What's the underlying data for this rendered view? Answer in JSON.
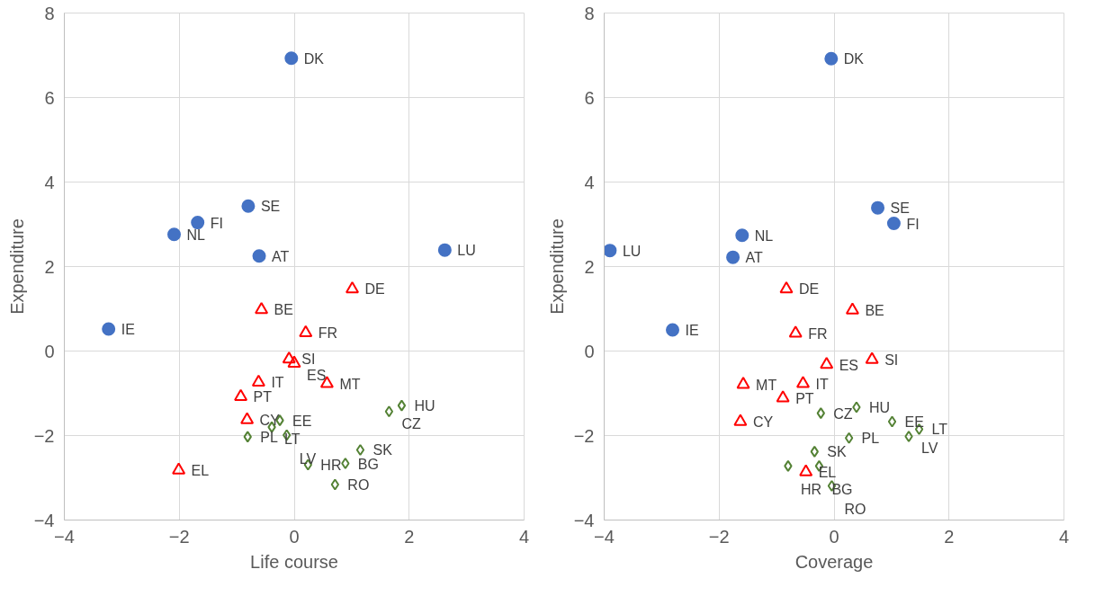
{
  "chart_data": [
    {
      "type": "scatter",
      "xlabel": "Life course",
      "ylabel": "Expenditure",
      "xlim": [
        -4,
        4
      ],
      "ylim": [
        -4,
        8
      ],
      "xticks": [
        -4,
        -2,
        0,
        2,
        4
      ],
      "yticks": [
        -4,
        -2,
        0,
        2,
        4,
        6,
        8
      ],
      "grid": true,
      "series": [
        {
          "color": "#4472c4",
          "marker": "circle",
          "x": [
            -0.05,
            -0.8,
            -1.68,
            -2.09,
            -0.61,
            2.62,
            -3.23
          ],
          "values": [
            6.93,
            3.43,
            3.04,
            2.76,
            2.25,
            2.39,
            0.52
          ]
        },
        {
          "color": "#ff0000",
          "marker": "triangle",
          "x": [
            1.01,
            -0.57,
            0.2,
            -0.09,
            0.0,
            -0.62,
            0.57,
            -0.93,
            -0.82,
            -2.01
          ],
          "values": [
            1.47,
            0.98,
            0.43,
            -0.19,
            -0.29,
            -0.74,
            -0.77,
            -1.08,
            -1.63,
            -2.82
          ]
        },
        {
          "color": "#548235",
          "marker": "diamond",
          "x": [
            1.87,
            1.65,
            -0.25,
            -0.39,
            -0.81,
            -0.13,
            1.15,
            0.24,
            0.89,
            0.71
          ],
          "values": [
            -1.29,
            -1.43,
            -1.64,
            -1.8,
            -2.03,
            -1.99,
            -2.34,
            -2.69,
            -2.66,
            -3.16
          ]
        }
      ],
      "annotations": [
        {
          "text": "DK",
          "x": -0.05,
          "y": 6.93
        },
        {
          "text": "SE",
          "x": -0.8,
          "y": 3.43
        },
        {
          "text": "FI",
          "x": -1.68,
          "y": 3.04
        },
        {
          "text": "NL",
          "x": -2.09,
          "y": 2.76
        },
        {
          "text": "AT",
          "x": -0.61,
          "y": 2.25
        },
        {
          "text": "LU",
          "x": 2.62,
          "y": 2.39
        },
        {
          "text": "IE",
          "x": -3.23,
          "y": 0.52
        },
        {
          "text": "DE",
          "x": 1.01,
          "y": 1.47
        },
        {
          "text": "BE",
          "x": -0.57,
          "y": 0.98
        },
        {
          "text": "FR",
          "x": 0.2,
          "y": 0.43
        },
        {
          "text": "SI",
          "x": -0.09,
          "y": -0.19
        },
        {
          "text": "ES",
          "x": 0.0,
          "y": -0.29
        },
        {
          "text": "IT",
          "x": -0.62,
          "y": -0.74
        },
        {
          "text": "MT",
          "x": 0.57,
          "y": -0.77
        },
        {
          "text": "PT",
          "x": -0.93,
          "y": -1.08
        },
        {
          "text": "CY",
          "x": -0.82,
          "y": -1.63
        },
        {
          "text": "EL",
          "x": -2.01,
          "y": -2.82
        },
        {
          "text": "HU",
          "x": 1.87,
          "y": -1.29
        },
        {
          "text": "CZ",
          "x": 1.65,
          "y": -1.43
        },
        {
          "text": "EE",
          "x": -0.25,
          "y": -1.64
        },
        {
          "text": "LT",
          "x": -0.39,
          "y": -1.8
        },
        {
          "text": "PL",
          "x": -0.81,
          "y": -2.03
        },
        {
          "text": "LV",
          "x": -0.13,
          "y": -1.99
        },
        {
          "text": "SK",
          "x": 1.15,
          "y": -2.34
        },
        {
          "text": "HR",
          "x": 0.24,
          "y": -2.69
        },
        {
          "text": "BG",
          "x": 0.89,
          "y": -2.66
        },
        {
          "text": "RO",
          "x": 0.71,
          "y": -3.16
        }
      ]
    },
    {
      "type": "scatter",
      "xlabel": "Coverage",
      "ylabel": "Expenditure",
      "xlim": [
        -4,
        4
      ],
      "ylim": [
        -4,
        8
      ],
      "xticks": [
        -4,
        -2,
        0,
        2,
        4
      ],
      "yticks": [
        -4,
        -2,
        0,
        2,
        4,
        6,
        8
      ],
      "grid": true,
      "series": [
        {
          "color": "#4472c4",
          "marker": "circle",
          "x": [
            -0.05,
            0.76,
            1.04,
            -1.6,
            -1.76,
            -3.9,
            -2.81
          ],
          "values": [
            6.92,
            3.39,
            3.02,
            2.74,
            2.22,
            2.38,
            0.5
          ]
        },
        {
          "color": "#ff0000",
          "marker": "triangle",
          "x": [
            -0.83,
            0.32,
            -0.67,
            -0.13,
            0.66,
            -1.58,
            -0.54,
            -0.89,
            -1.63,
            -0.49
          ],
          "values": [
            1.47,
            0.97,
            0.42,
            -0.32,
            -0.2,
            -0.79,
            -0.77,
            -1.11,
            -1.67,
            -2.86
          ]
        },
        {
          "color": "#548235",
          "marker": "diamond",
          "x": [
            -0.23,
            0.39,
            1.01,
            1.48,
            1.3,
            0.26,
            -0.34,
            -0.8,
            -0.26,
            -0.04
          ],
          "values": [
            -1.47,
            -1.33,
            -1.67,
            -1.85,
            -2.02,
            -2.06,
            -2.38,
            -2.72,
            -2.72,
            -3.19
          ]
        }
      ],
      "annotations": [
        {
          "text": "DK",
          "x": -0.05,
          "y": 6.92
        },
        {
          "text": "SE",
          "x": 0.76,
          "y": 3.39
        },
        {
          "text": "FI",
          "x": 1.04,
          "y": 3.02
        },
        {
          "text": "NL",
          "x": -1.6,
          "y": 2.74
        },
        {
          "text": "AT",
          "x": -1.76,
          "y": 2.22
        },
        {
          "text": "LU",
          "x": -3.9,
          "y": 2.38
        },
        {
          "text": "IE",
          "x": -2.81,
          "y": 0.5
        },
        {
          "text": "DE",
          "x": -0.83,
          "y": 1.47
        },
        {
          "text": "BE",
          "x": 0.32,
          "y": 0.97
        },
        {
          "text": "FR",
          "x": -0.67,
          "y": 0.42
        },
        {
          "text": "ES",
          "x": -0.13,
          "y": -0.32
        },
        {
          "text": "SI",
          "x": 0.66,
          "y": -0.2
        },
        {
          "text": "MT",
          "x": -1.58,
          "y": -0.79
        },
        {
          "text": "IT",
          "x": -0.54,
          "y": -0.77
        },
        {
          "text": "PT",
          "x": -0.89,
          "y": -1.11
        },
        {
          "text": "CY",
          "x": -1.63,
          "y": -1.67
        },
        {
          "text": "EL",
          "x": -0.49,
          "y": -2.86
        },
        {
          "text": "CZ",
          "x": -0.23,
          "y": -1.47
        },
        {
          "text": "HU",
          "x": 0.39,
          "y": -1.33
        },
        {
          "text": "EE",
          "x": 1.01,
          "y": -1.67
        },
        {
          "text": "LT",
          "x": 1.48,
          "y": -1.85
        },
        {
          "text": "LV",
          "x": 1.3,
          "y": -2.02
        },
        {
          "text": "PL",
          "x": 0.26,
          "y": -2.06
        },
        {
          "text": "SK",
          "x": -0.34,
          "y": -2.38
        },
        {
          "text": "HR",
          "x": -0.8,
          "y": -2.72
        },
        {
          "text": "BG",
          "x": -0.26,
          "y": -2.72
        },
        {
          "text": "RO",
          "x": -0.04,
          "y": -3.19
        }
      ]
    }
  ]
}
